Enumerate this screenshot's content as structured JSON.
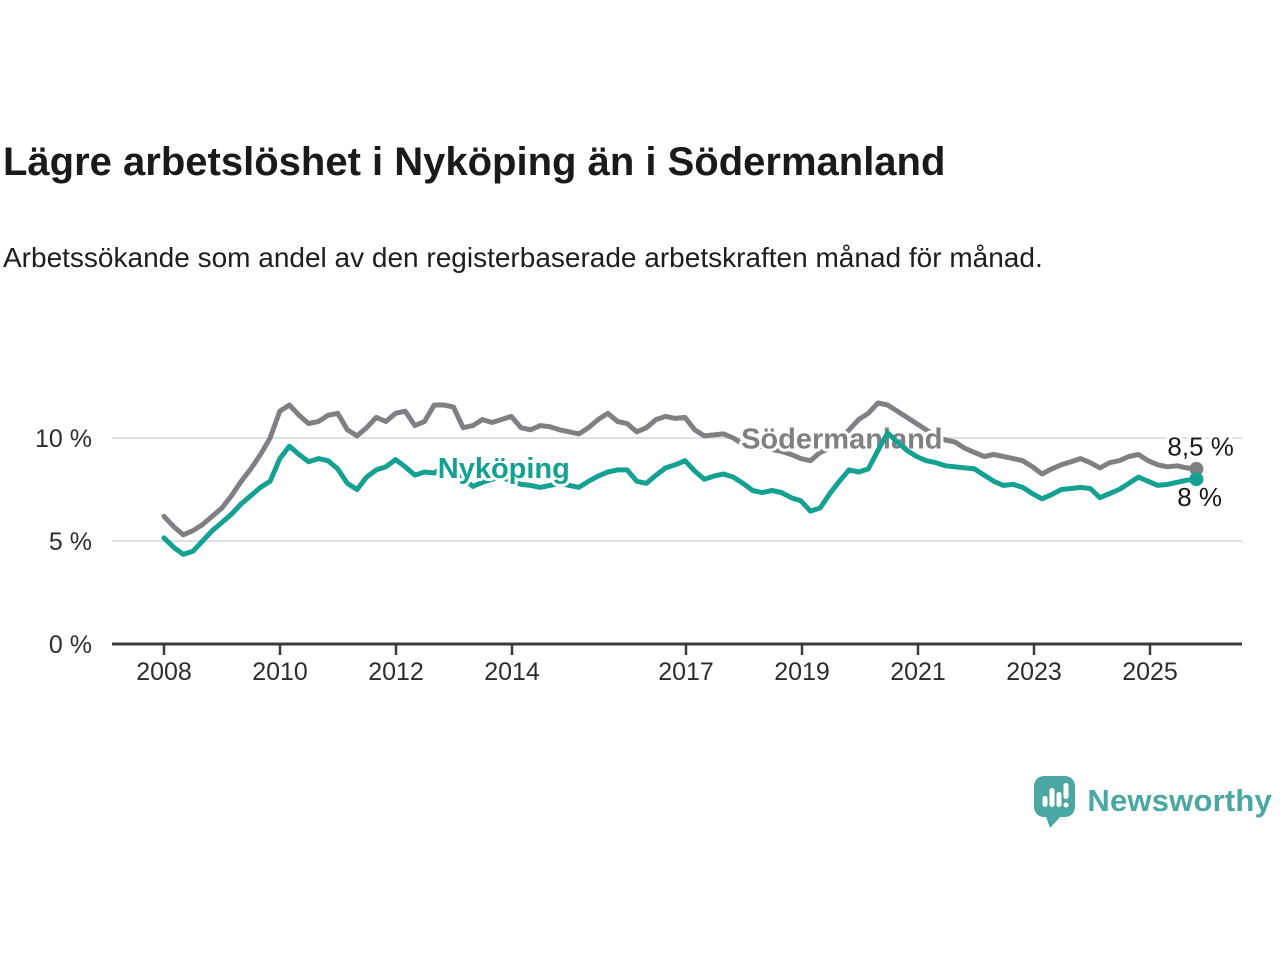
{
  "title": "Lägre arbetslöshet i Nyköping än i Södermanland",
  "subtitle": "Arbetssökande som andel av den registerbaserade arbetskraften månad för månad.",
  "branding": {
    "logo_text": "Newsworthy",
    "logo_color": "#4aa7a2"
  },
  "colors": {
    "sodermanland_line": "#7e8084",
    "nykoping_line": "#14a192",
    "grid": "#dcdcdc",
    "axis": "#3b3b3b",
    "text": "#1a1a1a"
  },
  "chart_data": {
    "type": "line",
    "title": "Lägre arbetslöshet i Nyköping än i Södermanland",
    "subtitle": "Arbetssökande som andel av den registerbaserade arbetskraften månad för månad.",
    "unit": "%",
    "x_start": 2008.0,
    "x_end": 2025.8,
    "points_note": "values every 2nd month, Jan 2008 - Oct 2025",
    "x_ticks": [
      2008,
      2010,
      2012,
      2014,
      2017,
      2019,
      2021,
      2023,
      2025
    ],
    "y_ticks": [
      {
        "value": 0,
        "label": "0 %"
      },
      {
        "value": 5,
        "label": "5 %"
      },
      {
        "value": 10,
        "label": "10 %"
      }
    ],
    "ylim": [
      0,
      12.5
    ],
    "grid": "horizontal-only",
    "legend_position": "inline-labels",
    "series": [
      {
        "name": "Södermanland",
        "color": "#7e8084",
        "end_dot": true,
        "label": {
          "year": 2017.95,
          "value": 9.5
        },
        "end_label": {
          "text": "8,5 %",
          "year": 2025.3,
          "value": 9.15
        },
        "values": [
          6.2,
          5.7,
          5.3,
          5.5,
          5.8,
          6.2,
          6.6,
          7.2,
          7.9,
          8.5,
          9.2,
          10.0,
          11.3,
          11.6,
          11.1,
          10.7,
          10.8,
          11.1,
          11.2,
          10.4,
          10.1,
          10.5,
          11.0,
          10.8,
          11.2,
          11.3,
          10.6,
          10.8,
          11.6,
          11.6,
          11.5,
          10.5,
          10.6,
          10.9,
          10.75,
          10.9,
          11.05,
          10.5,
          10.4,
          10.6,
          10.55,
          10.4,
          10.3,
          10.2,
          10.5,
          10.9,
          11.2,
          10.8,
          10.7,
          10.3,
          10.5,
          10.9,
          11.05,
          10.95,
          11.0,
          10.4,
          10.1,
          10.15,
          10.2,
          10.0,
          9.7,
          9.5,
          9.6,
          9.45,
          9.35,
          9.2,
          9.0,
          8.9,
          9.3,
          9.5,
          9.9,
          10.4,
          10.9,
          11.2,
          11.7,
          11.6,
          11.3,
          11.0,
          10.7,
          10.4,
          10.1,
          9.9,
          9.8,
          9.5,
          9.3,
          9.1,
          9.2,
          9.1,
          9.0,
          8.9,
          8.6,
          8.25,
          8.5,
          8.7,
          8.85,
          9.0,
          8.8,
          8.55,
          8.8,
          8.9,
          9.1,
          9.2,
          8.9,
          8.7,
          8.6,
          8.65,
          8.55,
          8.5
        ]
      },
      {
        "name": "Nyköping",
        "color": "#14a192",
        "end_dot": true,
        "label": {
          "year": 2012.72,
          "value": 8.05
        },
        "end_label": {
          "text": "8 %",
          "year": 2025.47,
          "value": 6.7
        },
        "values": [
          5.15,
          4.7,
          4.35,
          4.5,
          5.0,
          5.5,
          5.9,
          6.3,
          6.8,
          7.2,
          7.6,
          7.9,
          9.0,
          9.6,
          9.2,
          8.85,
          9.0,
          8.9,
          8.5,
          7.8,
          7.5,
          8.1,
          8.45,
          8.6,
          8.95,
          8.6,
          8.2,
          8.35,
          8.3,
          8.6,
          8.5,
          8.05,
          7.65,
          7.85,
          8.0,
          8.1,
          7.9,
          7.75,
          7.7,
          7.6,
          7.7,
          7.8,
          7.7,
          7.6,
          7.9,
          8.15,
          8.35,
          8.45,
          8.45,
          7.9,
          7.8,
          8.2,
          8.55,
          8.7,
          8.9,
          8.4,
          8.0,
          8.15,
          8.25,
          8.1,
          7.8,
          7.45,
          7.35,
          7.45,
          7.35,
          7.1,
          6.95,
          6.45,
          6.6,
          7.3,
          7.9,
          8.45,
          8.35,
          8.5,
          9.4,
          10.25,
          9.8,
          9.4,
          9.1,
          8.9,
          8.8,
          8.65,
          8.6,
          8.55,
          8.5,
          8.2,
          7.9,
          7.7,
          7.75,
          7.6,
          7.3,
          7.05,
          7.25,
          7.5,
          7.55,
          7.6,
          7.55,
          7.1,
          7.3,
          7.5,
          7.8,
          8.1,
          7.9,
          7.7,
          7.75,
          7.85,
          7.95,
          8.0
        ]
      }
    ]
  }
}
